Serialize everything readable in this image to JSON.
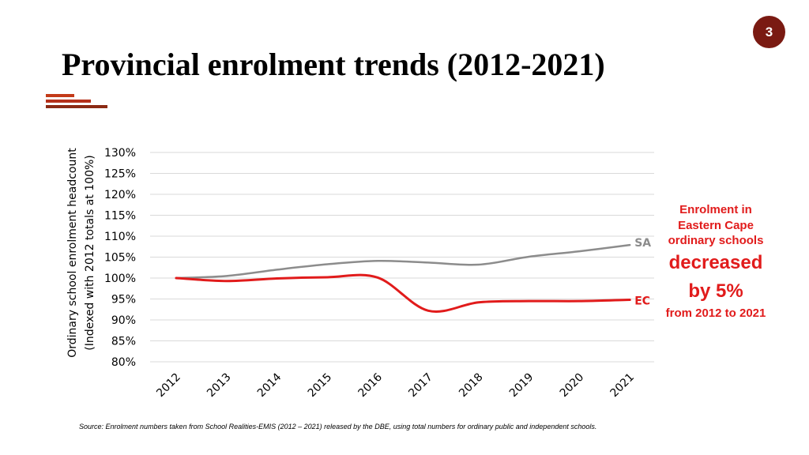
{
  "slide": {
    "page_number": "3",
    "title": "Provincial enrolment trends (2012-2021)",
    "accent_colors": [
      "#c33a18",
      "#b5301a",
      "#8b2a14"
    ]
  },
  "callout": {
    "line1": "Enrolment in",
    "line2": "Eastern Cape",
    "line3": "ordinary schools",
    "emphasis1": "decreased",
    "emphasis2": "by 5%",
    "tail": "from 2012 to 2021",
    "color": "#e11b1b"
  },
  "source": "Source: Enrolment numbers taken from School Realities-EMIS (2012 – 2021) released by the DBE, using total numbers for ordinary public and independent schools.",
  "chart_data": {
    "type": "line",
    "title": "",
    "ylabel_line1": "Ordinary school enrolment headcount",
    "ylabel_line2": "(Indexed with 2012 totals at 100%)",
    "xlabel": "",
    "ylim": [
      80,
      130
    ],
    "y_ticks": [
      80,
      85,
      90,
      95,
      100,
      105,
      110,
      115,
      120,
      125,
      130
    ],
    "y_tick_labels": [
      "80%",
      "85%",
      "90%",
      "95%",
      "100%",
      "105%",
      "110%",
      "115%",
      "120%",
      "125%",
      "130%"
    ],
    "grid": true,
    "categories": [
      "2012",
      "2013",
      "2014",
      "2015",
      "2016",
      "2017",
      "2018",
      "2019",
      "2020",
      "2021"
    ],
    "series": [
      {
        "name": "SA",
        "color": "#8c8c8c",
        "values": [
          100,
          100.5,
          102,
          103.3,
          104.1,
          103.7,
          103.2,
          105.1,
          106.4,
          107.9
        ]
      },
      {
        "name": "EC",
        "color": "#e11b1b",
        "values": [
          100,
          99.3,
          99.9,
          100.2,
          100.1,
          92.2,
          94.2,
          94.5,
          94.5,
          94.8
        ]
      }
    ]
  }
}
